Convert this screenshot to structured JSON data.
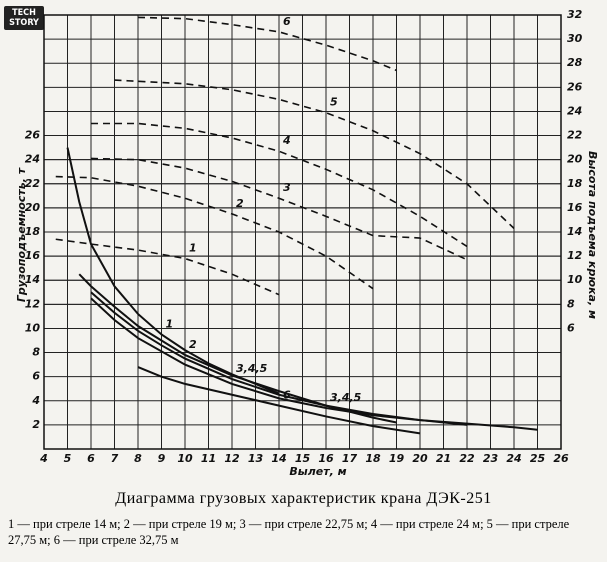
{
  "logo": "TECH STORY",
  "chart_data": {
    "type": "line",
    "title": "Диаграмма грузовых характеристик крана ДЭК-251",
    "caption": "1 — при стреле 14 м; 2 — при стреле 19 м; 3 — при стреле 22,75 м; 4 — при стреле 24 м; 5 — при стреле 27,75 м; 6 — при стреле 32,75 м",
    "xlabel": "Вылет, м",
    "ylabel": "Грузоподъемность, т",
    "y2label": "Высота подъема крюка, м",
    "xlim": [
      4,
      26
    ],
    "xticks": [
      4,
      5,
      6,
      7,
      8,
      9,
      10,
      11,
      12,
      13,
      14,
      15,
      16,
      17,
      18,
      19,
      20,
      21,
      22,
      23,
      24,
      25,
      26
    ],
    "ylim": [
      0,
      36
    ],
    "yticks": [
      2,
      4,
      6,
      8,
      10,
      12,
      14,
      16,
      18,
      20,
      22,
      24,
      26
    ],
    "y2lim": [
      -4,
      32
    ],
    "y2ticks": [
      6,
      8,
      10,
      12,
      14,
      16,
      18,
      20,
      22,
      24,
      26,
      28,
      30,
      32
    ],
    "grid": true,
    "series": [
      {
        "name": "1",
        "color": "#111",
        "style": "solid",
        "x": [
          5,
          5.5,
          6,
          7,
          8,
          9,
          10,
          11,
          12,
          13,
          14
        ],
        "values": [
          25,
          20.5,
          17,
          13.5,
          11.2,
          9.5,
          8.2,
          7.1,
          6.2,
          5.4,
          4.6
        ]
      },
      {
        "name": "2",
        "color": "#111",
        "style": "solid",
        "x": [
          5.5,
          6,
          7,
          8,
          9,
          10,
          12,
          14,
          16,
          18,
          19
        ],
        "values": [
          14.5,
          13.5,
          11.8,
          10.2,
          9,
          7.8,
          6.1,
          4.8,
          3.6,
          2.6,
          2.2
        ]
      },
      {
        "name": "3,4,5",
        "color": "#111",
        "style": "solid",
        "x": [
          6,
          7,
          8,
          9,
          10,
          12,
          14,
          16,
          18,
          20,
          22
        ],
        "values": [
          13,
          11.3,
          9.8,
          8.6,
          7.5,
          5.8,
          4.5,
          3.6,
          2.9,
          2.4,
          2
        ]
      },
      {
        "name": "3,4,5",
        "color": "#111",
        "style": "solid",
        "x": [
          6,
          7,
          8,
          10,
          12,
          14,
          16,
          18,
          20,
          22,
          24,
          25
        ],
        "values": [
          12.5,
          10.7,
          9.2,
          7,
          5.4,
          4.2,
          3.4,
          2.8,
          2.4,
          2.1,
          1.8,
          1.6
        ]
      },
      {
        "name": "6",
        "color": "#111",
        "style": "solid",
        "x": [
          8,
          9,
          10,
          12,
          14,
          16,
          18,
          20
        ],
        "values": [
          6.8,
          6,
          5.4,
          4.5,
          3.6,
          2.7,
          1.9,
          1.3
        ]
      },
      {
        "name": "1",
        "color": "#111",
        "style": "dashed",
        "axis": "y2",
        "x": [
          4.5,
          6,
          8,
          10,
          12,
          14
        ],
        "values": [
          13.4,
          13,
          12.5,
          11.8,
          10.5,
          8.8
        ]
      },
      {
        "name": "2",
        "color": "#111",
        "style": "dashed",
        "axis": "y2",
        "x": [
          4.5,
          6,
          8,
          10,
          12,
          14,
          16,
          18
        ],
        "values": [
          18.6,
          18.5,
          17.8,
          16.8,
          15.5,
          14,
          12,
          9.3
        ]
      },
      {
        "name": "3",
        "color": "#111",
        "style": "dashed",
        "axis": "y2",
        "x": [
          6,
          8,
          10,
          12,
          14,
          16,
          18,
          20,
          22
        ],
        "values": [
          20.1,
          20,
          19.3,
          18.2,
          16.8,
          15.3,
          13.7,
          13.5,
          11.7
        ]
      },
      {
        "name": "4",
        "color": "#111",
        "style": "dashed",
        "axis": "y2",
        "x": [
          6,
          8,
          10,
          12,
          14,
          16,
          18,
          20,
          22
        ],
        "values": [
          23,
          23,
          22.6,
          21.8,
          20.7,
          19.2,
          17.5,
          15.3,
          12.8
        ]
      },
      {
        "name": "5",
        "color": "#111",
        "style": "dashed",
        "axis": "y2",
        "x": [
          7,
          10,
          12,
          14,
          16,
          18,
          20,
          22,
          24
        ],
        "values": [
          26.6,
          26.3,
          25.8,
          25,
          23.9,
          22.4,
          20.5,
          18,
          14.3
        ]
      },
      {
        "name": "6",
        "color": "#111",
        "style": "dashed",
        "axis": "y2",
        "x": [
          8,
          10,
          12,
          14,
          16,
          18,
          19
        ],
        "values": [
          31.8,
          31.7,
          31.2,
          30.6,
          29.5,
          28.2,
          27.4
        ]
      }
    ]
  }
}
